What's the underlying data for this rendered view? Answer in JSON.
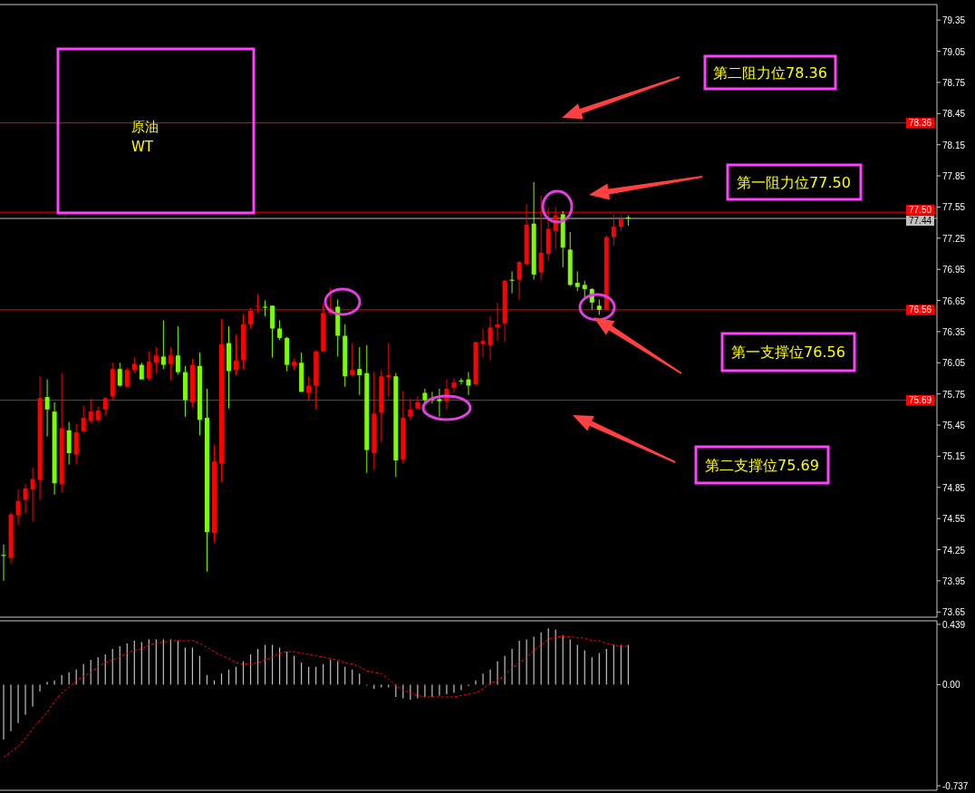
{
  "chart_data": [
    {
      "type": "candlestick",
      "categories": [
        null,
        null,
        null,
        null,
        null,
        null,
        null,
        null,
        null,
        null,
        null,
        null,
        null,
        null,
        null,
        null,
        null,
        null,
        null,
        null,
        null,
        null,
        null,
        null,
        null,
        null,
        null,
        null,
        null,
        null,
        null,
        null,
        null,
        null,
        null,
        null,
        null,
        null,
        null,
        null,
        null,
        null,
        null,
        null,
        null,
        null,
        null,
        null,
        null,
        null,
        null,
        null,
        null,
        null,
        null,
        null,
        null,
        null,
        null,
        null,
        null,
        null,
        null,
        null,
        null,
        null,
        null,
        null,
        null,
        null,
        null,
        null,
        null,
        null,
        null,
        null,
        null,
        null,
        null,
        null,
        null,
        null,
        null,
        null,
        null,
        null,
        null,
        null,
        null,
        null,
        null,
        null,
        null,
        null,
        null,
        null,
        null,
        null,
        null,
        null,
        null,
        null,
        null,
        null,
        null,
        null,
        null,
        null,
        null,
        null,
        null,
        null,
        null,
        null,
        null,
        null,
        null,
        null,
        null,
        null,
        null,
        null,
        null,
        null,
        null,
        null,
        null,
        null,
        null
      ],
      "ohlc": [
        [
          74.2,
          74.3,
          73.95,
          74.19
        ],
        [
          74.17,
          74.61,
          74.12,
          74.59
        ],
        [
          74.58,
          74.83,
          74.49,
          74.72
        ],
        [
          74.73,
          74.88,
          74.6,
          74.84
        ],
        [
          74.83,
          75.04,
          74.52,
          74.93
        ],
        [
          74.92,
          75.92,
          74.73,
          75.71
        ],
        [
          75.72,
          75.89,
          75.34,
          75.6
        ],
        [
          75.58,
          75.67,
          74.78,
          74.89
        ],
        [
          74.88,
          75.95,
          74.8,
          75.42
        ],
        [
          75.4,
          75.48,
          75.07,
          75.18
        ],
        [
          75.17,
          75.46,
          75.07,
          75.38
        ],
        [
          75.39,
          75.64,
          75.38,
          75.52
        ],
        [
          75.49,
          75.7,
          75.47,
          75.58
        ],
        [
          75.5,
          75.63,
          75.48,
          75.59
        ],
        [
          75.6,
          75.72,
          75.54,
          75.71
        ],
        [
          75.73,
          76.05,
          75.69,
          75.99
        ],
        [
          75.99,
          76.05,
          75.82,
          75.83
        ],
        [
          75.82,
          76.0,
          75.82,
          75.98
        ],
        [
          75.98,
          76.1,
          75.95,
          76.04
        ],
        [
          76.03,
          76.05,
          75.89,
          75.89
        ],
        [
          75.9,
          76.16,
          75.88,
          76.06
        ],
        [
          76.05,
          76.2,
          75.95,
          76.12
        ],
        [
          76.11,
          76.46,
          75.99,
          76.03
        ],
        [
          76.04,
          76.2,
          75.88,
          76.12
        ],
        [
          76.12,
          76.4,
          75.94,
          75.96
        ],
        [
          75.96,
          76.02,
          75.53,
          75.69
        ],
        [
          75.67,
          76.09,
          75.62,
          76.03
        ],
        [
          76.02,
          76.15,
          75.35,
          75.5
        ],
        [
          75.52,
          75.8,
          74.04,
          74.42
        ],
        [
          74.41,
          75.26,
          74.32,
          75.1
        ],
        [
          75.08,
          76.47,
          74.9,
          76.23
        ],
        [
          76.24,
          76.4,
          75.61,
          75.97
        ],
        [
          75.98,
          76.32,
          75.93,
          76.07
        ],
        [
          76.08,
          76.52,
          75.99,
          76.42
        ],
        [
          76.42,
          76.58,
          76.38,
          76.55
        ],
        [
          76.59,
          76.71,
          76.53,
          76.6
        ],
        [
          76.59,
          76.65,
          76.5,
          76.58
        ],
        [
          76.6,
          76.6,
          76.1,
          76.38
        ],
        [
          76.38,
          76.46,
          76.27,
          76.29
        ],
        [
          76.29,
          76.3,
          75.97,
          76.03
        ],
        [
          76.02,
          76.09,
          75.98,
          76.06
        ],
        [
          76.05,
          76.15,
          75.77,
          75.77
        ],
        [
          75.76,
          75.92,
          75.69,
          75.83
        ],
        [
          75.83,
          76.17,
          75.6,
          76.16
        ],
        [
          76.16,
          76.62,
          76.16,
          76.53
        ],
        [
          76.53,
          76.77,
          76.51,
          76.57
        ],
        [
          76.59,
          76.66,
          76.11,
          76.31
        ],
        [
          76.31,
          76.42,
          75.82,
          75.92
        ],
        [
          75.93,
          76.24,
          75.92,
          75.98
        ],
        [
          75.99,
          76.2,
          75.74,
          75.93
        ],
        [
          75.95,
          76.22,
          74.99,
          75.21
        ],
        [
          75.18,
          75.96,
          75.02,
          75.56
        ],
        [
          75.57,
          75.98,
          75.29,
          75.92
        ],
        [
          75.91,
          76.24,
          75.72,
          75.93
        ],
        [
          75.92,
          75.95,
          74.95,
          75.11
        ],
        [
          75.12,
          75.78,
          75.08,
          75.52
        ],
        [
          75.53,
          75.7,
          75.5,
          75.6
        ],
        [
          75.61,
          75.73,
          75.6,
          75.67
        ],
        [
          75.76,
          75.8,
          75.66,
          75.69
        ],
        [
          75.7,
          75.77,
          75.66,
          75.69
        ],
        [
          75.7,
          75.8,
          75.53,
          75.68
        ],
        [
          75.68,
          75.89,
          75.6,
          75.8
        ],
        [
          75.81,
          75.9,
          75.76,
          75.86
        ],
        [
          75.88,
          75.9,
          75.84,
          75.87
        ],
        [
          75.89,
          75.96,
          75.74,
          75.83
        ],
        [
          75.84,
          76.25,
          75.84,
          76.25
        ],
        [
          76.23,
          76.38,
          76.1,
          76.26
        ],
        [
          76.22,
          76.5,
          76.08,
          76.39
        ],
        [
          76.39,
          76.63,
          76.26,
          76.42
        ],
        [
          76.43,
          76.85,
          76.25,
          76.84
        ],
        [
          76.85,
          76.93,
          76.72,
          76.84
        ],
        [
          76.85,
          77.03,
          76.65,
          77.02
        ],
        [
          77.0,
          77.58,
          76.99,
          77.38
        ],
        [
          77.39,
          77.79,
          76.85,
          76.9
        ],
        [
          76.92,
          77.66,
          76.85,
          77.11
        ],
        [
          77.1,
          77.55,
          77.03,
          77.34
        ],
        [
          77.32,
          77.55,
          77.14,
          77.47
        ],
        [
          77.48,
          77.51,
          76.97,
          77.16
        ],
        [
          77.14,
          77.31,
          76.79,
          76.8
        ],
        [
          76.82,
          76.93,
          76.74,
          76.78
        ],
        [
          76.8,
          76.84,
          76.67,
          76.76
        ],
        [
          76.76,
          76.77,
          76.56,
          76.63
        ],
        [
          76.6,
          76.66,
          76.51,
          76.56
        ],
        [
          76.56,
          77.28,
          76.56,
          77.26
        ],
        [
          77.26,
          77.48,
          77.18,
          77.36
        ],
        [
          77.36,
          77.47,
          77.32,
          77.43
        ],
        [
          77.45,
          77.47,
          77.37,
          77.44
        ],
        null,
        null,
        null,
        null,
        null,
        null,
        null,
        null,
        null,
        null,
        null,
        null,
        null,
        null,
        null,
        null,
        null,
        null,
        null,
        null,
        null,
        null,
        null,
        null,
        null,
        null,
        null,
        null,
        null,
        null,
        null,
        null,
        null,
        null,
        null,
        null,
        null,
        null,
        null,
        null,
        null,
        null
      ],
      "ylim": [
        73.6,
        79.5
      ],
      "yticks": [
        73.65,
        73.95,
        74.25,
        74.55,
        74.85,
        75.15,
        75.45,
        75.75,
        76.05,
        76.35,
        76.65,
        76.95,
        77.25,
        77.55,
        77.85,
        78.15,
        78.45,
        78.75,
        79.05,
        79.35
      ],
      "ref_lines": [
        {
          "axis": "y",
          "value": 78.36,
          "label": "78.36",
          "color": "#ff0000"
        },
        {
          "axis": "y",
          "value": 77.5,
          "label": "77.50",
          "color": "#ff0000"
        },
        {
          "axis": "y",
          "value": 77.44,
          "label": "77.44",
          "color": "#c0c0c0"
        },
        {
          "axis": "y",
          "value": 76.56,
          "label": "76.56",
          "color": "#ff0000"
        },
        {
          "axis": "y",
          "value": 75.69,
          "label": "75.69",
          "color": "#ff0000"
        }
      ],
      "annotations": [
        "原油",
        "WT",
        "第二阻力位78.36",
        "第一阻力位77.50",
        "第一支撑位76.56",
        "第二支撑位75.69"
      ]
    },
    {
      "type": "bar",
      "categories": [
        null,
        null,
        null,
        null,
        null,
        null,
        null,
        null,
        null,
        null,
        null,
        null,
        null,
        null,
        null,
        null,
        null,
        null,
        null,
        null,
        null,
        null,
        null,
        null,
        null,
        null,
        null,
        null,
        null,
        null,
        null,
        null,
        null,
        null,
        null,
        null,
        null,
        null,
        null,
        null,
        null,
        null,
        null,
        null,
        null,
        null,
        null,
        null,
        null,
        null,
        null,
        null,
        null,
        null,
        null,
        null,
        null,
        null,
        null,
        null,
        null,
        null,
        null,
        null,
        null,
        null,
        null,
        null,
        null,
        null,
        null,
        null,
        null,
        null,
        null,
        null,
        null,
        null,
        null,
        null,
        null,
        null,
        null,
        null,
        null,
        null,
        null,
        null,
        null,
        null,
        null,
        null,
        null,
        null,
        null,
        null,
        null,
        null,
        null,
        null,
        null,
        null,
        null,
        null,
        null,
        null,
        null,
        null,
        null,
        null,
        null,
        null,
        null,
        null,
        null,
        null,
        null,
        null,
        null,
        null,
        null,
        null,
        null,
        null,
        null,
        null,
        null,
        null,
        null
      ],
      "series": [
        {
          "color": "#c0c0c0",
          "values": [
            -0.4,
            -0.34,
            -0.28,
            -0.22,
            -0.16,
            -0.05,
            0.02,
            0.03,
            0.07,
            0.09,
            0.11,
            0.15,
            0.18,
            0.2,
            0.22,
            0.26,
            0.28,
            0.3,
            0.32,
            0.31,
            0.33,
            0.33,
            0.33,
            0.33,
            0.32,
            0.27,
            0.27,
            0.21,
            0.07,
            0.03,
            0.08,
            0.11,
            0.13,
            0.17,
            0.22,
            0.26,
            0.29,
            0.29,
            0.27,
            0.24,
            0.21,
            0.16,
            0.13,
            0.13,
            0.15,
            0.18,
            0.17,
            0.13,
            0.11,
            0.08,
            0.0,
            -0.03,
            -0.02,
            -0.02,
            -0.09,
            -0.1,
            -0.11,
            -0.1,
            -0.09,
            -0.09,
            -0.08,
            -0.07,
            -0.06,
            -0.04,
            -0.01,
            0.03,
            0.08,
            0.11,
            0.17,
            0.21,
            0.26,
            0.32,
            0.33,
            0.35,
            0.38,
            0.41,
            0.4,
            0.36,
            0.33,
            0.29,
            0.25,
            0.2,
            0.23,
            0.26,
            0.29,
            0.29,
            0.29,
            null,
            null,
            null,
            null,
            null,
            null,
            null,
            null,
            null,
            null,
            null,
            null,
            null,
            null,
            null,
            null,
            null,
            null,
            null,
            null,
            null,
            null,
            null,
            null,
            null,
            null,
            null,
            null,
            null,
            null,
            null,
            null,
            null,
            null,
            null,
            null,
            null,
            null,
            null,
            null,
            null,
            null
          ]
        },
        {
          "type": "line",
          "color": "#ff0000",
          "line_style": "dashed",
          "values": [
            -0.53,
            -0.49,
            -0.45,
            -0.39,
            -0.32,
            -0.26,
            -0.2,
            -0.12,
            -0.06,
            -0.02,
            0.03,
            0.06,
            0.09,
            0.13,
            0.16,
            0.18,
            0.2,
            0.23,
            0.25,
            0.26,
            0.29,
            0.3,
            0.31,
            0.32,
            0.32,
            0.32,
            0.32,
            0.3,
            0.27,
            0.24,
            0.21,
            0.19,
            0.16,
            0.15,
            0.15,
            0.16,
            0.18,
            0.2,
            0.23,
            0.24,
            0.24,
            0.23,
            0.22,
            0.21,
            0.2,
            0.19,
            0.18,
            0.16,
            0.15,
            0.13,
            0.1,
            0.09,
            0.08,
            0.04,
            -0.01,
            -0.04,
            -0.06,
            -0.08,
            -0.09,
            -0.09,
            -0.09,
            -0.09,
            -0.09,
            -0.08,
            -0.07,
            -0.06,
            -0.03,
            0.01,
            0.03,
            0.07,
            0.12,
            0.16,
            0.2,
            0.25,
            0.29,
            0.33,
            0.35,
            0.35,
            0.35,
            0.34,
            0.34,
            0.32,
            0.32,
            0.3,
            0.29,
            0.28,
            0.28,
            null,
            null,
            null,
            null,
            null,
            null,
            null,
            null,
            null,
            null,
            null,
            null,
            null,
            null,
            null,
            null,
            null,
            null,
            null,
            null,
            null,
            null,
            null,
            null,
            null,
            null,
            null,
            null,
            null,
            null,
            null,
            null,
            null,
            null,
            null,
            null,
            null,
            null,
            null,
            null,
            null,
            null
          ]
        }
      ],
      "ylim": [
        -0.77,
        0.465
      ],
      "yticks": [
        0.439,
        {
          "value": 0,
          "label": "0.00"
        },
        -0.737
      ]
    }
  ]
}
